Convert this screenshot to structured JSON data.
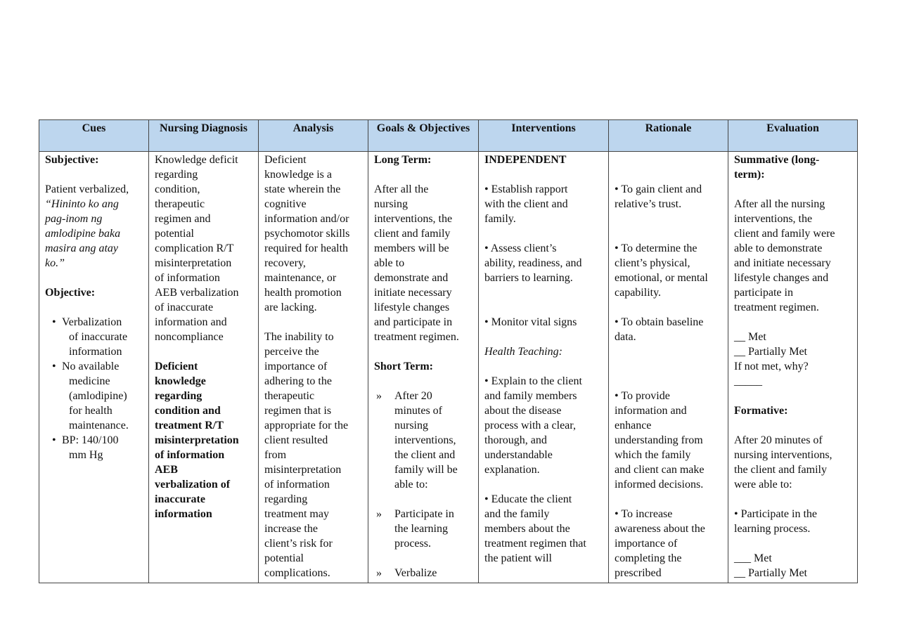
{
  "headers": [
    "Cues",
    "Nursing Diagnosis",
    "Analysis",
    "Goals & Objectives",
    "Interventions",
    "Rationale",
    "Evaluation"
  ],
  "colors": {
    "header_bg": "#bdd6ee",
    "border": "#444444"
  },
  "columns": [
    [
      {
        "t": "Subjective:",
        "s": "b"
      },
      {
        "t": ""
      },
      {
        "t": "Patient verbalized,"
      },
      {
        "t": "“Hininto ko ang",
        "s": "i"
      },
      {
        "t": "pag-inom ng",
        "s": "i"
      },
      {
        "t": "amlodipine baka",
        "s": "i"
      },
      {
        "t": "masira ang atay",
        "s": "i"
      },
      {
        "t": "ko.”",
        "s": "i"
      },
      {
        "t": ""
      },
      {
        "t": "Objective:",
        "s": "b"
      },
      {
        "t": ""
      },
      {
        "t": "Verbalization",
        "m": "•"
      },
      {
        "t": "of inaccurate",
        "s": "cont"
      },
      {
        "t": "information",
        "s": "cont"
      },
      {
        "t": "No available",
        "m": "•"
      },
      {
        "t": "medicine",
        "s": "cont"
      },
      {
        "t": "(amlodipine)",
        "s": "cont"
      },
      {
        "t": "for health",
        "s": "cont"
      },
      {
        "t": "maintenance.",
        "s": "cont"
      },
      {
        "t": "BP: 140/100",
        "m": "•"
      },
      {
        "t": "mm Hg",
        "s": "cont"
      }
    ],
    [
      {
        "t": "Knowledge deficit"
      },
      {
        "t": "regarding"
      },
      {
        "t": "condition,"
      },
      {
        "t": "therapeutic"
      },
      {
        "t": "regimen and"
      },
      {
        "t": "potential"
      },
      {
        "t": "complication R/T"
      },
      {
        "t": "misinterpretation"
      },
      {
        "t": "of information"
      },
      {
        "t": "AEB verbalization"
      },
      {
        "t": "of inaccurate"
      },
      {
        "t": "information and"
      },
      {
        "t": "noncompliance"
      },
      {
        "t": ""
      },
      {
        "t": "Deficient",
        "s": "b"
      },
      {
        "t": "knowledge",
        "s": "b"
      },
      {
        "t": "regarding",
        "s": "b"
      },
      {
        "t": "condition and",
        "s": "b"
      },
      {
        "t": "treatment R/T",
        "s": "b"
      },
      {
        "t": "misinterpretation",
        "s": "b"
      },
      {
        "t": "of information",
        "s": "b"
      },
      {
        "t": "AEB",
        "s": "b"
      },
      {
        "t": "verbalization of",
        "s": "b"
      },
      {
        "t": "inaccurate",
        "s": "b"
      },
      {
        "t": "information",
        "s": "b"
      }
    ],
    [
      {
        "t": "Deficient"
      },
      {
        "t": "knowledge is a"
      },
      {
        "t": "state wherein the"
      },
      {
        "t": "cognitive"
      },
      {
        "t": "information and/or"
      },
      {
        "t": "psychomotor skills"
      },
      {
        "t": "required for health"
      },
      {
        "t": "recovery,"
      },
      {
        "t": "maintenance, or"
      },
      {
        "t": "health promotion"
      },
      {
        "t": "are lacking."
      },
      {
        "t": ""
      },
      {
        "t": "The inability to"
      },
      {
        "t": "perceive the"
      },
      {
        "t": "importance of"
      },
      {
        "t": "adhering to the"
      },
      {
        "t": "therapeutic"
      },
      {
        "t": "regimen that is"
      },
      {
        "t": "appropriate for the"
      },
      {
        "t": "client resulted"
      },
      {
        "t": "from"
      },
      {
        "t": "misinterpretation"
      },
      {
        "t": "of information"
      },
      {
        "t": "regarding"
      },
      {
        "t": "treatment may"
      },
      {
        "t": "increase the"
      },
      {
        "t": "client’s risk for"
      },
      {
        "t": "potential"
      },
      {
        "t": "complications."
      }
    ],
    [
      {
        "t": "Long Term:",
        "s": "b"
      },
      {
        "t": ""
      },
      {
        "t": "After all the"
      },
      {
        "t": "nursing"
      },
      {
        "t": "interventions, the"
      },
      {
        "t": "client and family"
      },
      {
        "t": "members will be"
      },
      {
        "t": "able to"
      },
      {
        "t": "demonstrate and"
      },
      {
        "t": "initiate necessary"
      },
      {
        "t": "lifestyle changes"
      },
      {
        "t": "and participate in"
      },
      {
        "t": "treatment regimen."
      },
      {
        "t": ""
      },
      {
        "t": "Short Term:",
        "s": "b"
      },
      {
        "t": ""
      },
      {
        "t": "After 20",
        "c": "»"
      },
      {
        "t": "minutes of",
        "s": "chevc"
      },
      {
        "t": "nursing",
        "s": "chevc"
      },
      {
        "t": "interventions,",
        "s": "chevc"
      },
      {
        "t": "the client and",
        "s": "chevc"
      },
      {
        "t": "family will be",
        "s": "chevc"
      },
      {
        "t": "able to:",
        "s": "chevc"
      },
      {
        "t": ""
      },
      {
        "t": "Participate in",
        "c": "»"
      },
      {
        "t": "the learning",
        "s": "chevc"
      },
      {
        "t": "process.",
        "s": "chevc"
      },
      {
        "t": ""
      },
      {
        "t": "Verbalize",
        "c": "»"
      }
    ],
    [
      {
        "t": "INDEPENDENT",
        "s": "b"
      },
      {
        "t": ""
      },
      {
        "t": "• Establish rapport"
      },
      {
        "t": "with the client and"
      },
      {
        "t": "family."
      },
      {
        "t": ""
      },
      {
        "t": "• Assess client’s"
      },
      {
        "t": "ability, readiness, and"
      },
      {
        "t": "barriers to learning."
      },
      {
        "t": ""
      },
      {
        "t": ""
      },
      {
        "t": "• Monitor vital signs"
      },
      {
        "t": ""
      },
      {
        "t": "Health Teaching:",
        "s": "i"
      },
      {
        "t": ""
      },
      {
        "t": "• Explain to the client"
      },
      {
        "t": "and family members"
      },
      {
        "t": "about the disease"
      },
      {
        "t": "process with a clear,"
      },
      {
        "t": "thorough, and"
      },
      {
        "t": "understandable"
      },
      {
        "t": "explanation."
      },
      {
        "t": ""
      },
      {
        "t": "• Educate the client"
      },
      {
        "t": "and the family"
      },
      {
        "t": "members about the"
      },
      {
        "t": "treatment regimen that"
      },
      {
        "t": "the patient will"
      }
    ],
    [
      {
        "t": ""
      },
      {
        "t": ""
      },
      {
        "t": "• To gain client and"
      },
      {
        "t": "relative’s trust."
      },
      {
        "t": ""
      },
      {
        "t": ""
      },
      {
        "t": "• To determine the"
      },
      {
        "t": "client’s physical,"
      },
      {
        "t": "emotional, or mental"
      },
      {
        "t": "capability."
      },
      {
        "t": ""
      },
      {
        "t": "• To obtain baseline"
      },
      {
        "t": "data."
      },
      {
        "t": ""
      },
      {
        "t": ""
      },
      {
        "t": ""
      },
      {
        "t": "• To provide"
      },
      {
        "t": "information and"
      },
      {
        "t": "enhance"
      },
      {
        "t": "understanding from"
      },
      {
        "t": "which the family"
      },
      {
        "t": "and client can make"
      },
      {
        "t": "informed decisions."
      },
      {
        "t": ""
      },
      {
        "t": "• To increase"
      },
      {
        "t": "awareness about the"
      },
      {
        "t": "importance of"
      },
      {
        "t": "completing the"
      },
      {
        "t": "prescribed"
      }
    ],
    [
      {
        "t": "Summative (long-",
        "s": "b"
      },
      {
        "t": "term):",
        "s": "b"
      },
      {
        "t": ""
      },
      {
        "t": "After all the nursing"
      },
      {
        "t": "interventions, the"
      },
      {
        "t": "client and family were"
      },
      {
        "t": "able to demonstrate"
      },
      {
        "t": "and initiate necessary"
      },
      {
        "t": "lifestyle changes and"
      },
      {
        "t": "participate in"
      },
      {
        "t": "treatment regimen."
      },
      {
        "t": ""
      },
      {
        "t": "__ Met"
      },
      {
        "t": "__ Partially Met"
      },
      {
        "t": "If not met, why?"
      },
      {
        "t": "_____"
      },
      {
        "t": ""
      },
      {
        "t": "Formative:",
        "s": "b"
      },
      {
        "t": ""
      },
      {
        "t": "After 20 minutes of"
      },
      {
        "t": "nursing interventions,"
      },
      {
        "t": "the client and family"
      },
      {
        "t": "were able to:"
      },
      {
        "t": ""
      },
      {
        "t": "• Participate in the"
      },
      {
        "t": "learning process."
      },
      {
        "t": ""
      },
      {
        "t": "___ Met"
      },
      {
        "t": "__ Partially Met"
      }
    ]
  ]
}
